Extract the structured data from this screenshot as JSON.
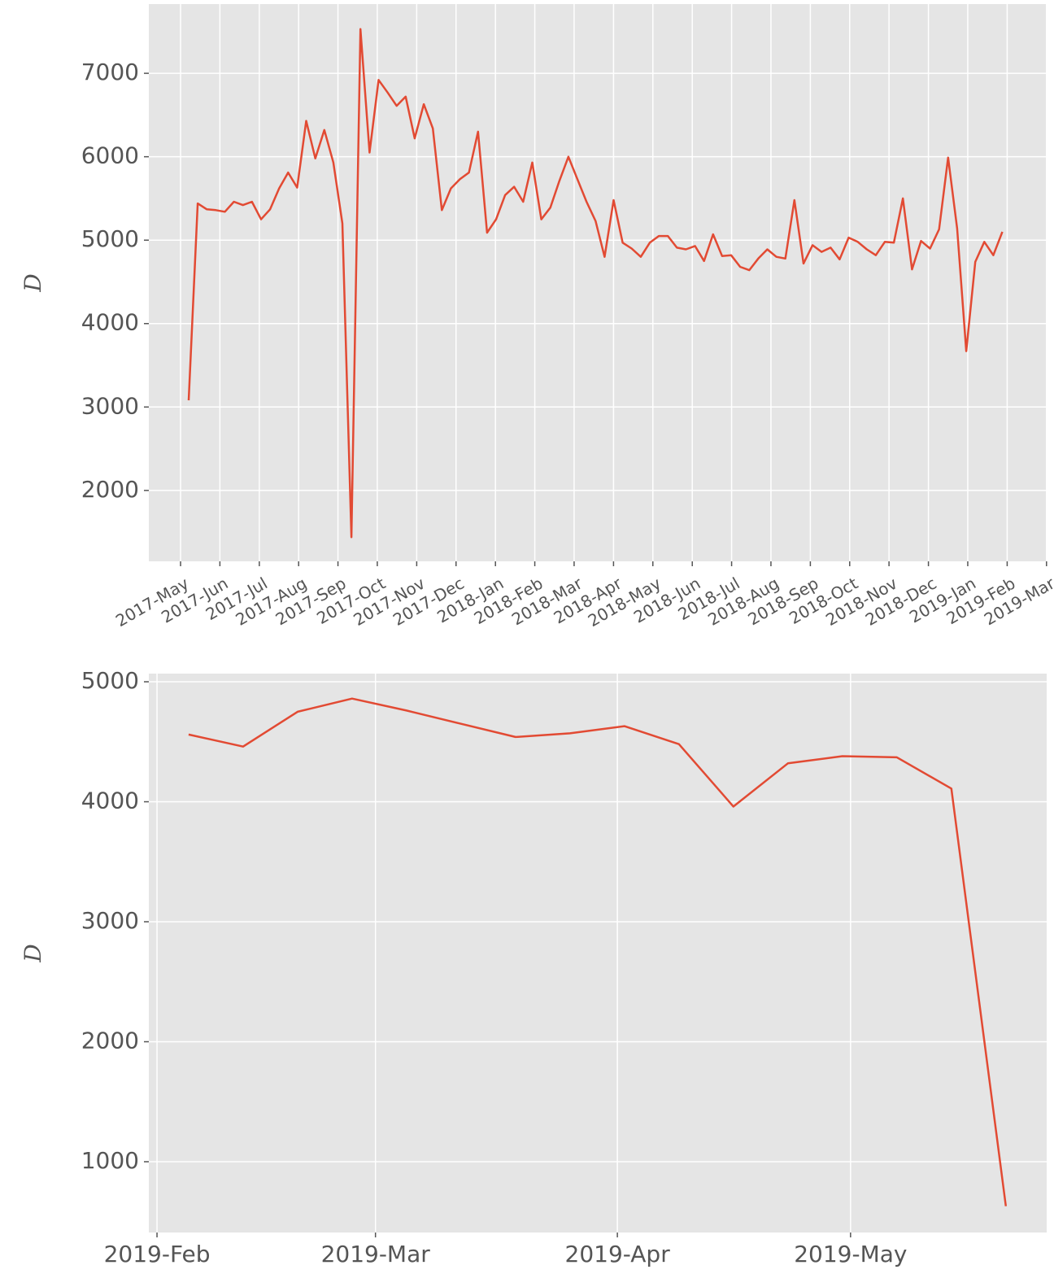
{
  "chart_data": [
    {
      "type": "line",
      "ylabel": "D",
      "categories": [
        null,
        null,
        null,
        null,
        null,
        null,
        null,
        null,
        null,
        null,
        null,
        null,
        null,
        null,
        null,
        null,
        null,
        null,
        null,
        null,
        null,
        null,
        null,
        null,
        null,
        null,
        null,
        null,
        null,
        null,
        null,
        null,
        null,
        null,
        null,
        null,
        null,
        null,
        null,
        null,
        null,
        null,
        null,
        null,
        null,
        null,
        null,
        null,
        null,
        null,
        null,
        null,
        null,
        null,
        null,
        null,
        null,
        null,
        null,
        null,
        null,
        null,
        null,
        null,
        null,
        null,
        null,
        null,
        null,
        null,
        null,
        null,
        null,
        null,
        null,
        null,
        null,
        null,
        null,
        null,
        null,
        null,
        null,
        null,
        null,
        null,
        null,
        null,
        null,
        null,
        null
      ],
      "series": [
        {
          "name": "D",
          "color": "#e24a33",
          "values": [
            3080,
            5440,
            5370,
            5360,
            5340,
            5460,
            5420,
            5460,
            5250,
            5370,
            5620,
            5810,
            5630,
            6430,
            5980,
            6320,
            5930,
            5200,
            1440,
            7530,
            6050,
            6920,
            6770,
            6610,
            6720,
            6220,
            6630,
            6340,
            5360,
            5620,
            5730,
            5810,
            6300,
            5090,
            5250,
            5540,
            5640,
            5460,
            5930,
            5250,
            5390,
            5710,
            6000,
            5730,
            5460,
            5230,
            4800,
            5480,
            4970,
            4900,
            4800,
            4970,
            5050,
            5050,
            4910,
            4890,
            4930,
            4750,
            5070,
            4810,
            4820,
            4680,
            4640,
            4780,
            4890,
            4800,
            4780,
            5480,
            4720,
            4940,
            4860,
            4910,
            4770,
            5030,
            4980,
            4890,
            4820,
            4980,
            4970,
            5500,
            4650,
            4990,
            4900,
            5130,
            5990,
            5140,
            3670,
            4740,
            4980,
            4820,
            5100
          ]
        }
      ],
      "xlim": [
        -4.41,
        94.9
      ],
      "xticks": [
        {
          "value": -0.9,
          "label": "2017-May"
        },
        {
          "value": 3.45,
          "label": "2017-Jun"
        },
        {
          "value": 7.81,
          "label": "2017-Jul"
        },
        {
          "value": 12.16,
          "label": "2017-Aug"
        },
        {
          "value": 16.51,
          "label": "2017-Sep"
        },
        {
          "value": 20.86,
          "label": "2017-Oct"
        },
        {
          "value": 25.22,
          "label": "2017-Nov"
        },
        {
          "value": 29.57,
          "label": "2017-Dec"
        },
        {
          "value": 33.93,
          "label": "2018-Jan"
        },
        {
          "value": 38.28,
          "label": "2018-Feb"
        },
        {
          "value": 42.63,
          "label": "2018-Mar"
        },
        {
          "value": 46.99,
          "label": "2018-Apr"
        },
        {
          "value": 51.34,
          "label": "2018-May"
        },
        {
          "value": 55.7,
          "label": "2018-Jun"
        },
        {
          "value": 60.05,
          "label": "2018-Jul"
        },
        {
          "value": 64.4,
          "label": "2018-Aug"
        },
        {
          "value": 68.76,
          "label": "2018-Sep"
        },
        {
          "value": 73.11,
          "label": "2018-Oct"
        },
        {
          "value": 77.46,
          "label": "2018-Nov"
        },
        {
          "value": 81.82,
          "label": "2018-Dec"
        },
        {
          "value": 86.17,
          "label": "2019-Jan"
        },
        {
          "value": 90.53,
          "label": "2019-Feb"
        },
        {
          "value": 94.88,
          "label": "2019-Mar"
        }
      ],
      "ylim": [
        1150,
        7830
      ],
      "yticks": [
        2000,
        3000,
        4000,
        5000,
        6000,
        7000
      ],
      "grid": true
    },
    {
      "type": "line",
      "ylabel": "D",
      "categories": [
        null,
        null,
        null,
        null,
        null,
        null,
        null,
        null,
        null,
        null,
        null,
        null,
        null,
        null,
        null,
        null
      ],
      "series": [
        {
          "name": "D",
          "color": "#e24a33",
          "values": [
            4560,
            4460,
            4750,
            4860,
            4760,
            4650,
            4540,
            4570,
            4630,
            4480,
            3960,
            4320,
            4380,
            4370,
            4110,
            630
          ]
        }
      ],
      "xlim": [
        -0.73,
        15.75
      ],
      "xticks": [
        {
          "value": -0.58,
          "label": "2019-Feb"
        },
        {
          "value": 3.43,
          "label": "2019-Mar"
        },
        {
          "value": 7.87,
          "label": "2019-Apr"
        },
        {
          "value": 12.15,
          "label": "2019-May"
        }
      ],
      "ylim": [
        410,
        5068
      ],
      "yticks": [
        1000,
        2000,
        3000,
        4000,
        5000
      ],
      "grid": true
    }
  ]
}
